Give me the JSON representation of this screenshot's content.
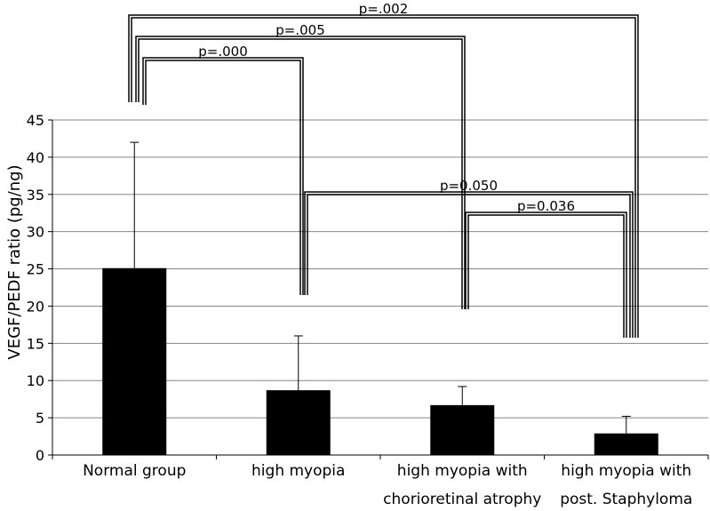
{
  "chart_data": {
    "type": "bar",
    "title": "",
    "xlabel": "",
    "ylabel": "VEGF/PEDF ratio (pg/ng)",
    "ylim": [
      0,
      45
    ],
    "yticks": [
      0,
      5,
      10,
      15,
      20,
      25,
      30,
      35,
      40,
      45
    ],
    "grid": true,
    "categories": [
      [
        "Normal group"
      ],
      [
        "high myopia"
      ],
      [
        "high myopia with",
        "chorioretinal atrophy"
      ],
      [
        "high myopia with",
        "post. Staphyloma"
      ]
    ],
    "values": [
      25.1,
      8.7,
      6.7,
      2.9
    ],
    "error_upper": [
      42.0,
      16.0,
      9.2,
      5.2
    ],
    "bar_color": "#000000",
    "grid_color": "#868686",
    "significance": [
      {
        "label": "p=.002",
        "groups": [
          0,
          3
        ]
      },
      {
        "label": "p=.005",
        "groups": [
          0,
          2
        ]
      },
      {
        "label": "p=.000",
        "groups": [
          0,
          1
        ]
      },
      {
        "label": "p=0.050",
        "groups": [
          1,
          3
        ]
      },
      {
        "label": "p=0.036",
        "groups": [
          2,
          3
        ]
      }
    ]
  }
}
